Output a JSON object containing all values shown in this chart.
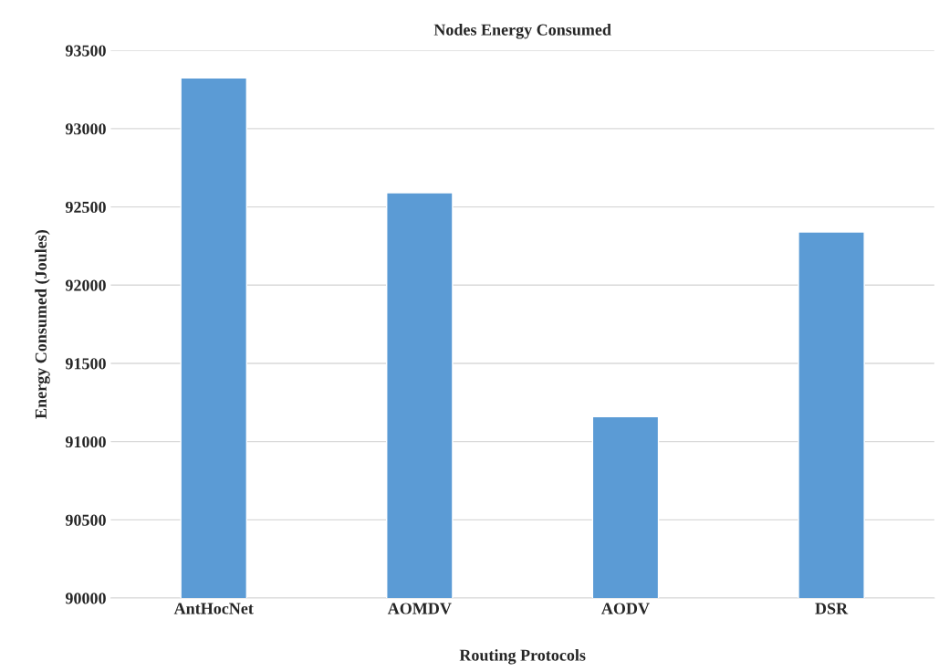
{
  "chart_data": {
    "type": "bar",
    "title": "Nodes Energy Consumed",
    "xlabel": "Routing Protocols",
    "ylabel": "Energy Consumed (Joules)",
    "categories": [
      "AntHocNet",
      "AOMDV",
      "AODV",
      "DSR"
    ],
    "values": [
      93325,
      92590,
      91160,
      92340
    ],
    "color": "#5b9bd5",
    "ylim": [
      90000,
      93500
    ],
    "yticks": [
      90000,
      90500,
      91000,
      91500,
      92000,
      92500,
      93000,
      93500
    ],
    "grid": "y"
  }
}
